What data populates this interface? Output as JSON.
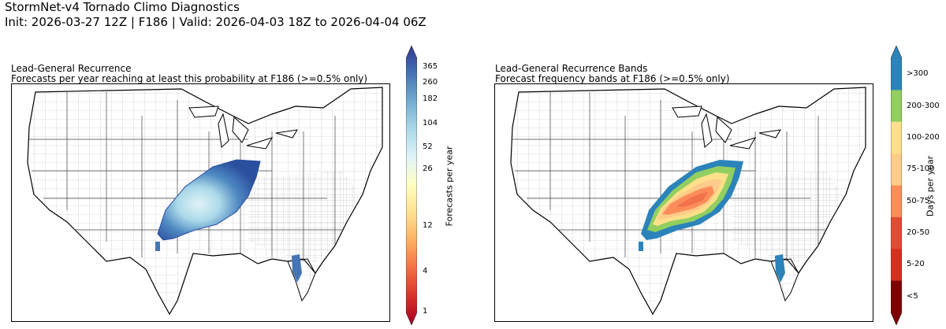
{
  "figure": {
    "title_line1": "StormNet-v4 Tornado Climo Diagnostics",
    "title_line2": "Init: 2026-03-27 12Z | F186 | Valid: 2026-04-03 18Z to 2026-04-04 06Z"
  },
  "left_panel": {
    "title": "Lead-General Recurrence",
    "subtitle": "Forecasts per year reaching at least this probability at F186 (>=0.5% only)",
    "colorbar": {
      "label": "Forecasts per year",
      "ticks": [
        "365",
        "260",
        "182",
        "104",
        "52",
        "26",
        "12",
        "4",
        "1"
      ],
      "colors": [
        "#a50026",
        "#d73027",
        "#f46d43",
        "#fdae61",
        "#fee090",
        "#ffffbf",
        "#e0f3f8",
        "#abd9e9",
        "#74add1",
        "#4575b4",
        "#313695"
      ]
    }
  },
  "right_panel": {
    "title": "Lead-General Recurrence Bands",
    "subtitle": "Forecast frequency bands at F186 (>=0.5% only)",
    "colorbar": {
      "label": "Days per year",
      "bands": [
        {
          "label": ">300",
          "color": "#2b83ba"
        },
        {
          "label": "200-300",
          "color": "#91cf60"
        },
        {
          "label": "100-200",
          "color": "#fee08b"
        },
        {
          "label": "75-100",
          "color": "#fdcc8a"
        },
        {
          "label": "50-75",
          "color": "#fc8d59"
        },
        {
          "label": "20-50",
          "color": "#e34a33"
        },
        {
          "label": "5-20",
          "color": "#d7301f"
        },
        {
          "label": "<5",
          "color": "#7f0000"
        }
      ]
    }
  }
}
